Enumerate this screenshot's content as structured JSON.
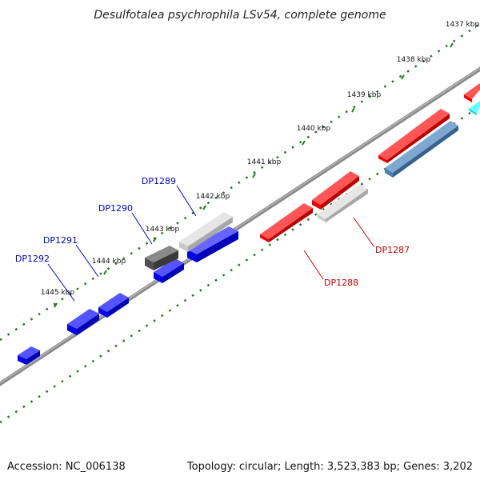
{
  "title": "Desulfotalea psychrophila LSv54, complete genome",
  "footer": {
    "accession": "Accession: NC_006138",
    "summary": "Topology: circular; Length: 3,523,383 bp; Genes: 3,202"
  },
  "ticks": [
    "1437 kbp",
    "1438 kbp",
    "1439 kbp",
    "1440 kbp",
    "1441 kbp",
    "1442 kbp",
    "1443 kbp",
    "1444 kbp",
    "1445 kbp"
  ],
  "gene_labels": [
    {
      "name": "DP1289",
      "strand": "forward"
    },
    {
      "name": "DP1290",
      "strand": "forward"
    },
    {
      "name": "DP1291",
      "strand": "forward"
    },
    {
      "name": "DP1292",
      "strand": "forward"
    },
    {
      "name": "DP1288",
      "strand": "reverse"
    },
    {
      "name": "DP1287",
      "strand": "reverse"
    }
  ],
  "colors": {
    "backbone": "#8a8a8a",
    "tick": "#1a7a1a",
    "forward_gene": "#0000ee",
    "reverse_gene": "#ee0000",
    "gray_gene": "#c0c0c0",
    "dark_gene": "#606060",
    "steel_gene": "#4f7fb0",
    "cyan_gene": "#00e5e5",
    "label_fwd": "#0000cc",
    "label_rev": "#cc0000"
  }
}
